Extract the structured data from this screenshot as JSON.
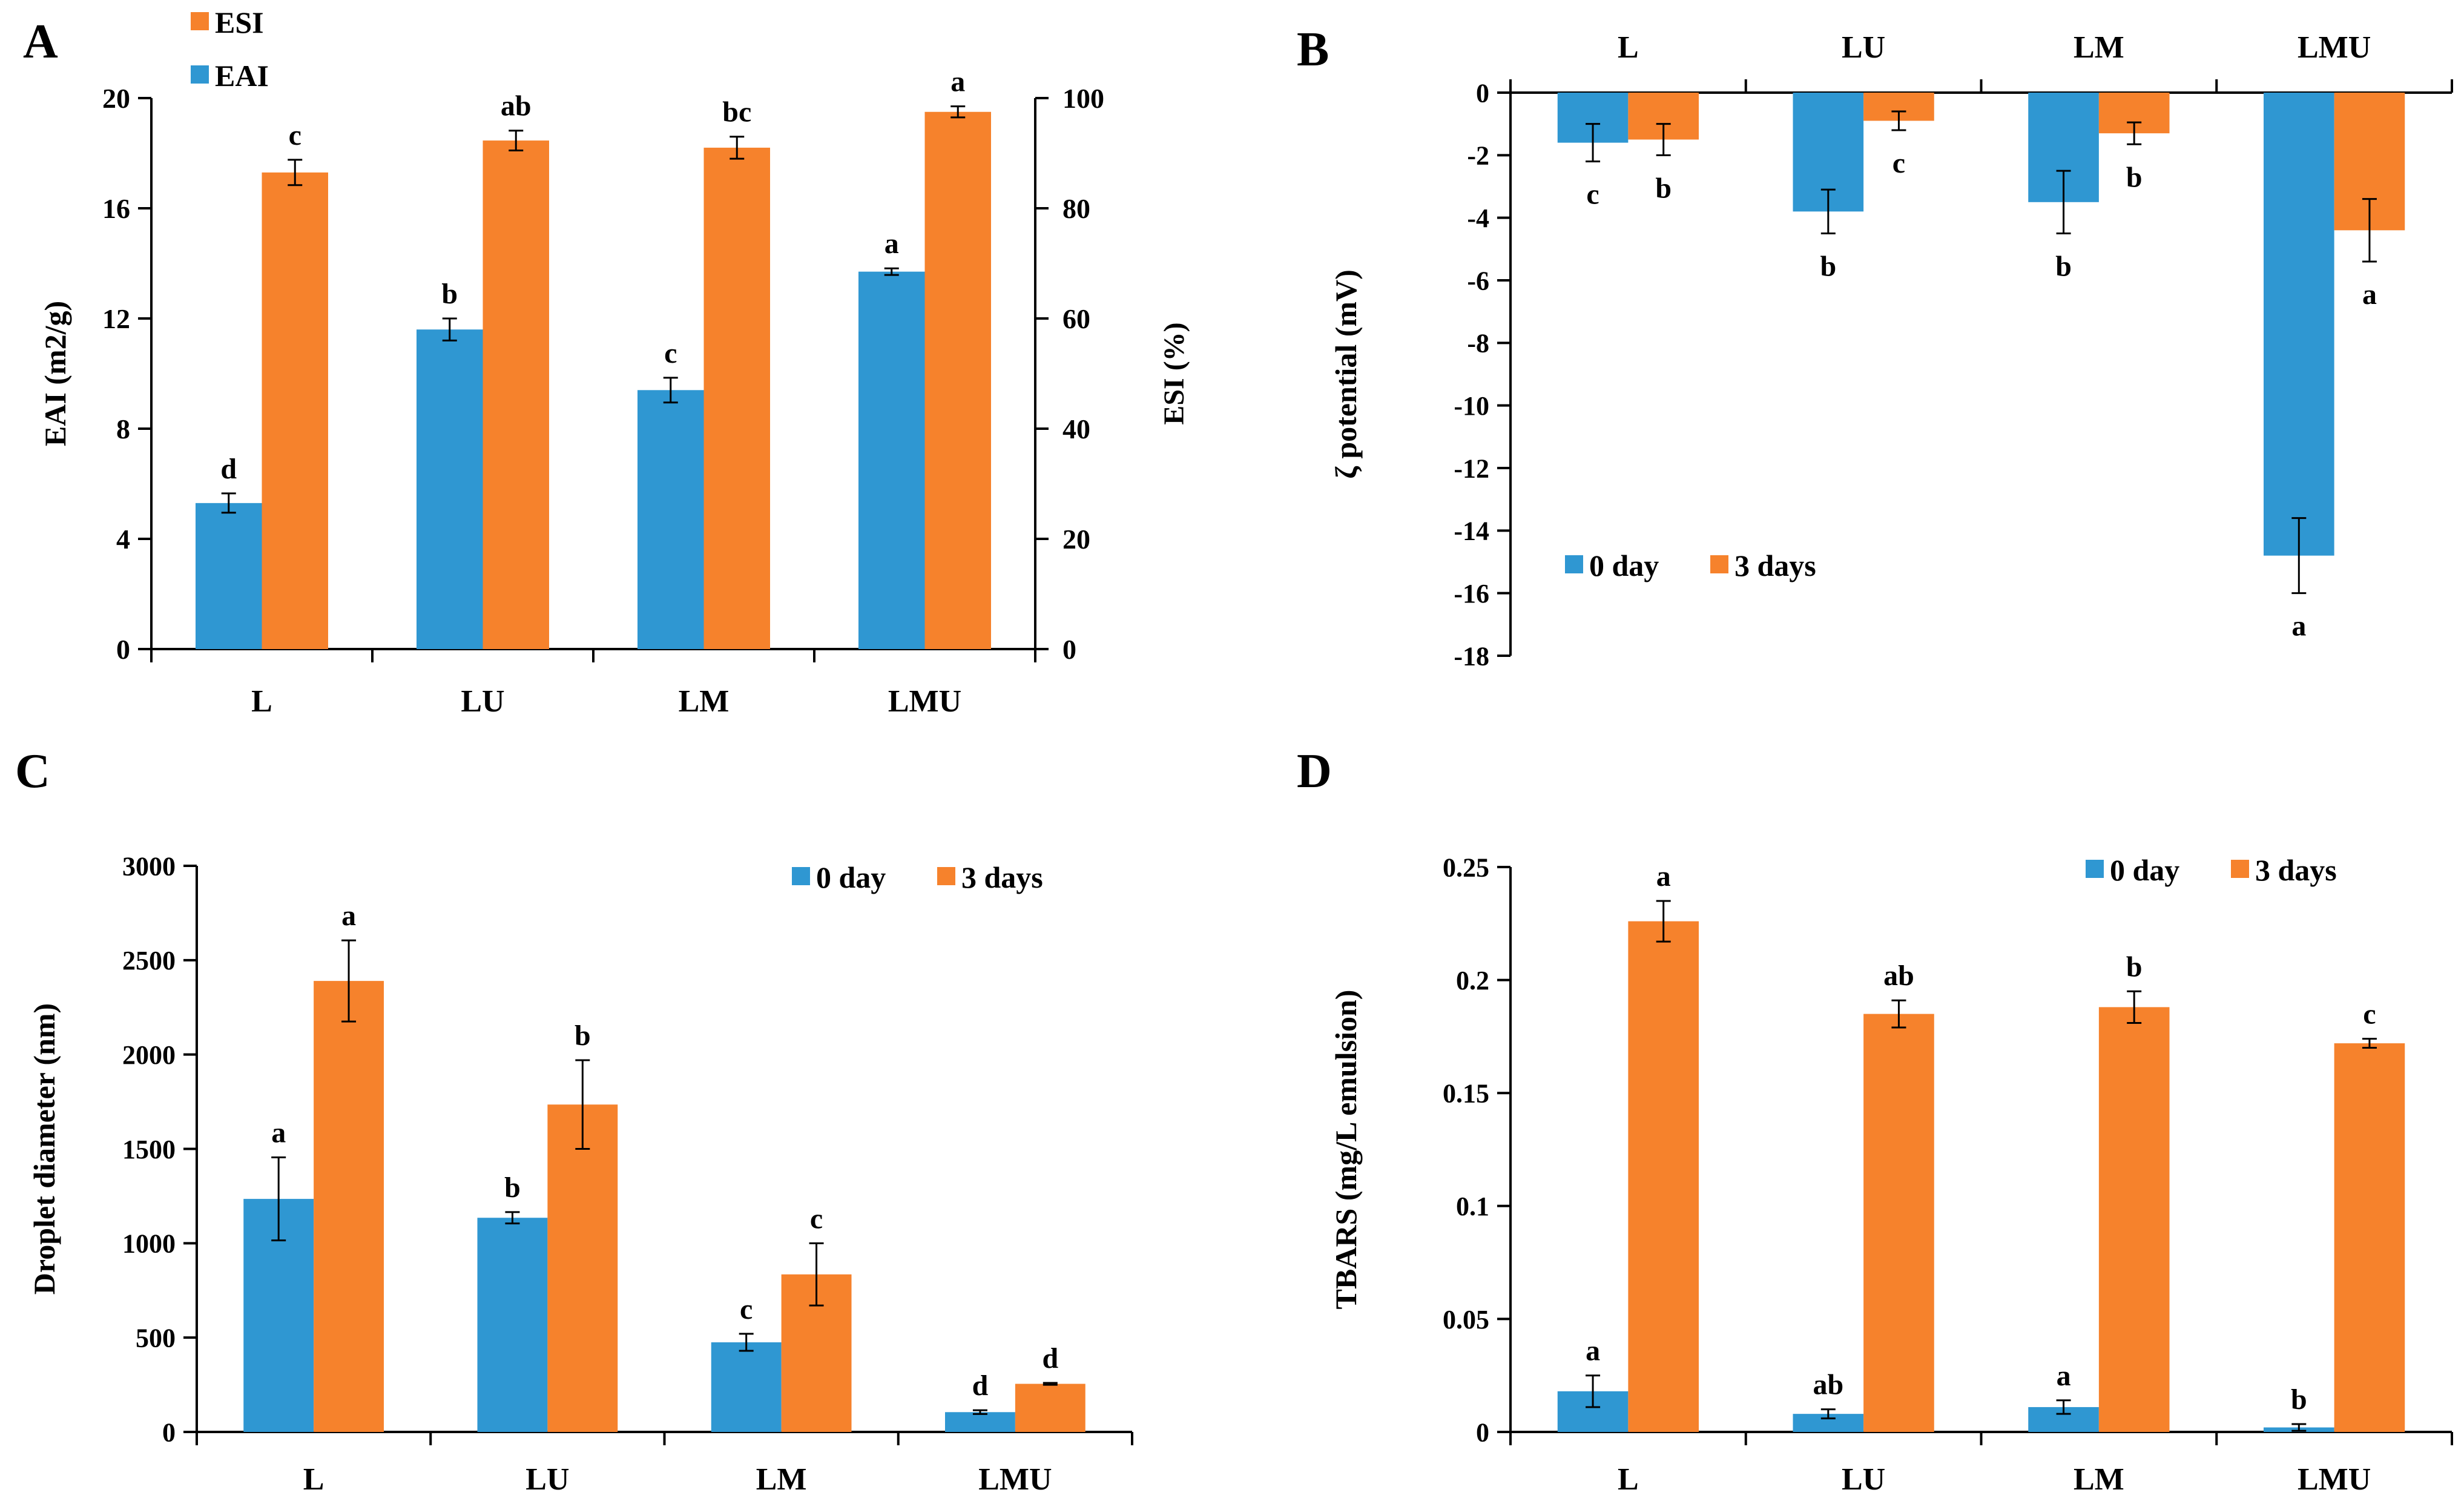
{
  "colors": {
    "blue": "#2F97D2",
    "orange": "#F6822C",
    "axis": "#000000"
  },
  "chart_data": [
    {
      "panel": "A",
      "type": "bar",
      "categories": [
        "L",
        "LU",
        "LM",
        "LMU"
      ],
      "series": [
        {
          "name": "EAI",
          "axis": "left",
          "color": "#2F97D2",
          "values": [
            5.3,
            11.6,
            9.4,
            13.7
          ],
          "errors": [
            0.35,
            0.4,
            0.45,
            0.12
          ],
          "letters": [
            "d",
            "b",
            "c",
            "a"
          ]
        },
        {
          "name": "ESI",
          "axis": "right",
          "color": "#F6822C",
          "values": [
            86.5,
            92.3,
            91.0,
            97.5
          ],
          "errors": [
            2.3,
            1.8,
            2.0,
            1.0
          ],
          "letters": [
            "c",
            "ab",
            "bc",
            "a"
          ]
        }
      ],
      "ylabel": "EAI (m2/g)",
      "ylim": [
        0,
        20
      ],
      "yticks": [
        0,
        4,
        8,
        12,
        16,
        20
      ],
      "ylabel_right": "ESI (%)",
      "ylim_right": [
        0,
        100
      ],
      "yticks_right": [
        0,
        20,
        40,
        60,
        80,
        100
      ],
      "legend": [
        "ESI",
        "EAI"
      ],
      "legend_position": "top-left",
      "category_position": "bottom"
    },
    {
      "panel": "B",
      "type": "bar",
      "categories": [
        "L",
        "LU",
        "LM",
        "LMU"
      ],
      "series": [
        {
          "name": "0 day",
          "color": "#2F97D2",
          "values": [
            -1.6,
            -3.8,
            -3.5,
            -14.8
          ],
          "errors": [
            0.6,
            0.7,
            1.0,
            1.2
          ],
          "letters": [
            "c",
            "b",
            "b",
            "a"
          ]
        },
        {
          "name": "3 days",
          "color": "#F6822C",
          "values": [
            -1.5,
            -0.9,
            -1.3,
            -4.4
          ],
          "errors": [
            0.5,
            0.3,
            0.35,
            1.0
          ],
          "letters": [
            "b",
            "c",
            "b",
            "a"
          ]
        }
      ],
      "ylabel": "ζ potential (mV)",
      "ylim": [
        -18,
        0
      ],
      "yticks": [
        0,
        -2,
        -4,
        -6,
        -8,
        -10,
        -12,
        -14,
        -16,
        -18
      ],
      "legend": [
        "0 day",
        "3 days"
      ],
      "legend_position": "lower-left",
      "category_position": "top"
    },
    {
      "panel": "C",
      "type": "bar",
      "categories": [
        "L",
        "LU",
        "LM",
        "LMU"
      ],
      "series": [
        {
          "name": "0 day",
          "color": "#2F97D2",
          "values": [
            1235,
            1135,
            475,
            105
          ],
          "errors": [
            220,
            30,
            45,
            10
          ],
          "letters": [
            "a",
            "b",
            "c",
            "d"
          ]
        },
        {
          "name": "3 days",
          "color": "#F6822C",
          "values": [
            2390,
            1735,
            835,
            255
          ],
          "errors": [
            215,
            235,
            165,
            5
          ],
          "letters": [
            "a",
            "b",
            "c",
            "d"
          ]
        }
      ],
      "ylabel": "Droplet diameter (nm)",
      "ylim": [
        0,
        3000
      ],
      "yticks": [
        0,
        500,
        1000,
        1500,
        2000,
        2500,
        3000
      ],
      "legend": [
        "0 day",
        "3 days"
      ],
      "legend_position": "top-right",
      "category_position": "bottom"
    },
    {
      "panel": "D",
      "type": "bar",
      "categories": [
        "L",
        "LU",
        "LM",
        "LMU"
      ],
      "series": [
        {
          "name": "0 day",
          "color": "#2F97D2",
          "values": [
            0.018,
            0.008,
            0.011,
            0.002
          ],
          "errors": [
            0.007,
            0.002,
            0.003,
            0.0015
          ],
          "letters": [
            "a",
            "ab",
            "a",
            "b"
          ]
        },
        {
          "name": "3 days",
          "color": "#F6822C",
          "values": [
            0.226,
            0.185,
            0.188,
            0.172
          ],
          "errors": [
            0.009,
            0.006,
            0.007,
            0.002
          ],
          "letters": [
            "a",
            "ab",
            "b",
            "c"
          ]
        }
      ],
      "ylabel": "TBARS (mg/L emulsion)",
      "ylim": [
        0,
        0.25
      ],
      "yticks": [
        0,
        0.05,
        0.1,
        0.15,
        0.2,
        0.25
      ],
      "ytick_labels": [
        "0",
        "0.05",
        "0.1",
        "0.15",
        "0.2",
        "0.25"
      ],
      "legend": [
        "0 day",
        "3 days"
      ],
      "legend_position": "top-right",
      "category_position": "bottom"
    }
  ]
}
